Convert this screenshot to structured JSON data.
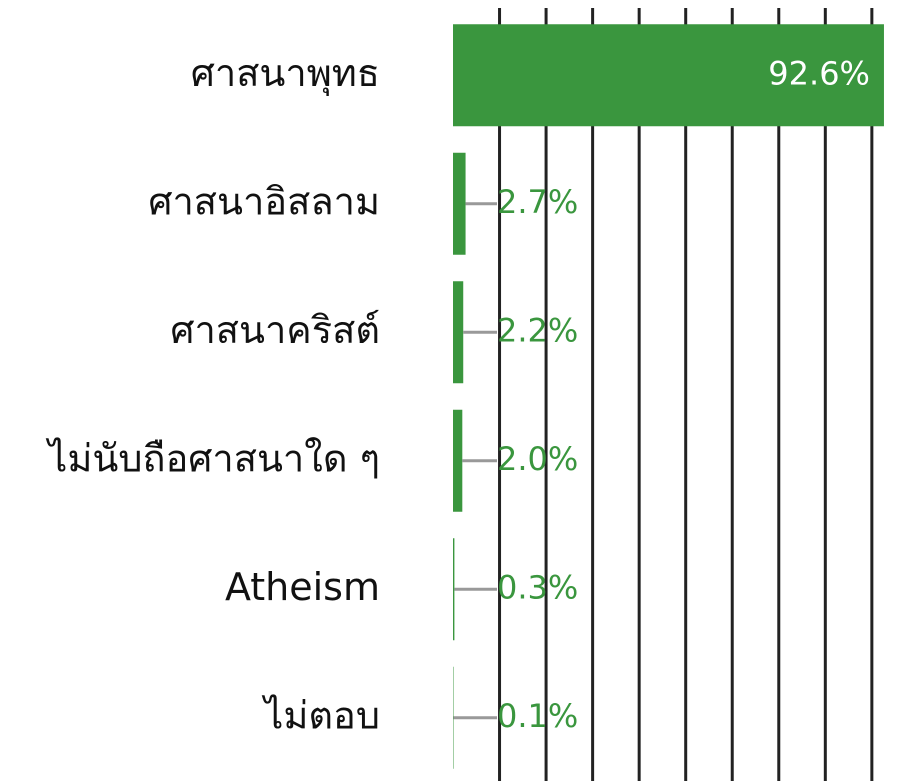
{
  "chart_data": {
    "type": "hbar",
    "categories": [
      "ศาสนาพุทธ",
      "ศาสนาอิสลาม",
      "ศาสนาคริสต์",
      "ไม่นับถือศาสนาใด ๆ",
      "Atheism",
      "ไม่ตอบ"
    ],
    "values": [
      92.6,
      2.7,
      2.2,
      2.0,
      0.3,
      0.1
    ],
    "value_labels": [
      "92.6%",
      "2.7%",
      "2.2%",
      "2.0%",
      "0.3%",
      "0.1%"
    ],
    "color": "#3a963e",
    "xlim": [
      0,
      100
    ],
    "xticks": [
      10,
      20,
      30,
      40,
      50,
      60,
      70,
      80,
      90
    ],
    "grid": true
  }
}
